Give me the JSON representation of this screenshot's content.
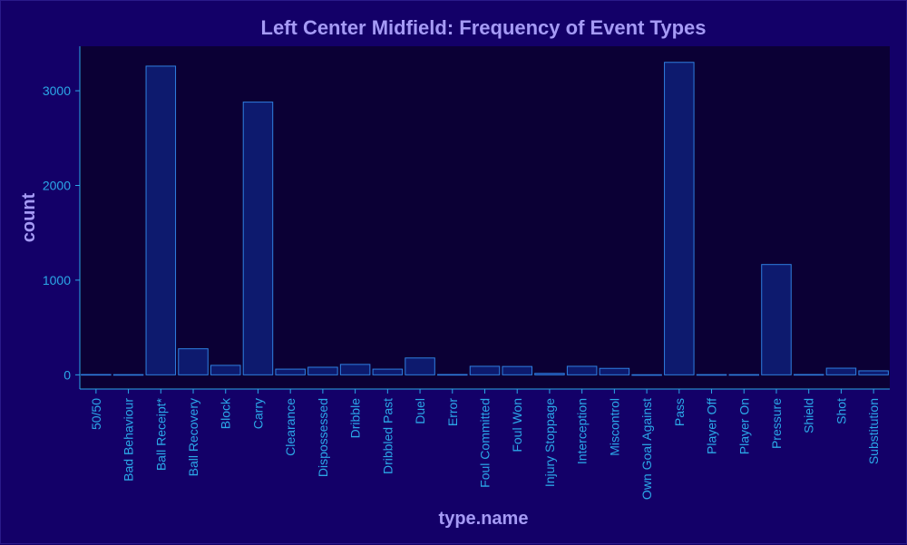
{
  "chart_data": {
    "type": "bar",
    "title": "Left Center Midfield: Frequency of Event Types",
    "xlabel": "type.name",
    "ylabel": "count",
    "categories": [
      "50/50",
      "Bad Behaviour",
      "Ball Receipt*",
      "Ball Recovery",
      "Block",
      "Carry",
      "Clearance",
      "Dispossessed",
      "Dribble",
      "Dribbled Past",
      "Duel",
      "Error",
      "Foul Committed",
      "Foul Won",
      "Injury Stoppage",
      "Interception",
      "Miscontrol",
      "Own Goal Against",
      "Pass",
      "Player Off",
      "Player On",
      "Pressure",
      "Shield",
      "Shot",
      "Substitution"
    ],
    "values": [
      3,
      2,
      3260,
      275,
      100,
      2880,
      60,
      80,
      110,
      60,
      178,
      3,
      90,
      88,
      15,
      90,
      68,
      1,
      3300,
      2,
      2,
      1165,
      3,
      70,
      42
    ],
    "ylim": [
      -150,
      3470
    ],
    "yticks": [
      0,
      1000,
      2000,
      3000
    ],
    "grid": false,
    "colors": {
      "background": "#130068",
      "plot_background": "#0b0035",
      "bar_fill": "#0d1a6e",
      "bar_stroke": "#2f7fe0",
      "axis": "#2ba8e8",
      "tick_text": "#2ba8e8",
      "title_text": "#a59af5"
    }
  }
}
